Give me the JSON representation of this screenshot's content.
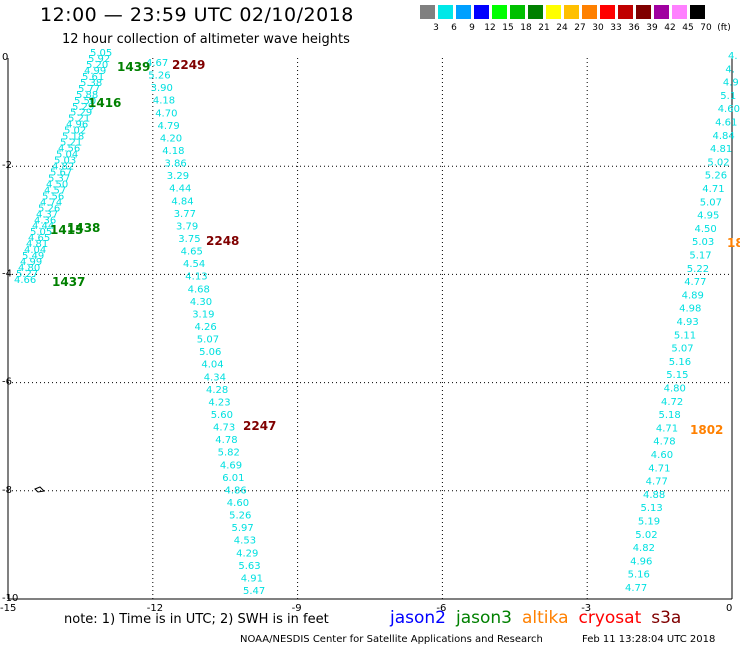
{
  "title": "12:00 — 23:59 UTC 02/10/2018",
  "subtitle": "12 hour collection of altimeter wave heights",
  "color_scale": {
    "labels": [
      "3",
      "6",
      "9",
      "12",
      "15",
      "18",
      "21",
      "24",
      "27",
      "30",
      "33",
      "36",
      "39",
      "42",
      "45",
      "70",
      "(ft)"
    ],
    "colors": [
      "#808080",
      "#00e8e8",
      "#00a0ff",
      "#0000ff",
      "#00ff00",
      "#00c000",
      "#008000",
      "#ffff00",
      "#ffc000",
      "#ff8000",
      "#ff0000",
      "#c00000",
      "#800000",
      "#a000a0",
      "#ff80ff",
      "#000000"
    ]
  },
  "axes": {
    "x_ticks": [
      "-15",
      "-12",
      "-9",
      "-6",
      "-3",
      "0"
    ],
    "y_ticks": [
      "0",
      "-2",
      "-4",
      "-6",
      "-8",
      "-10"
    ]
  },
  "tracks": [
    {
      "name": "track-a",
      "color": "#00e0e0",
      "values": [
        "5.05",
        "5.92",
        "5.20",
        "4.99",
        "5.61",
        "5.38",
        "5.77",
        "5.88",
        "5.50",
        "5.29",
        "5.29",
        "5.21",
        "4.96",
        "5.02",
        "5.18",
        "5.21",
        "4.56",
        "5.04",
        "5.03",
        "4.82",
        "5.67",
        "5.37",
        "4.50",
        "4.57",
        "5.56",
        "4.74",
        "5.26",
        "4.37",
        "4.36",
        "4.44",
        "5.05",
        "4.65",
        "4.81",
        "4.04",
        "5.49",
        "4.99",
        "4.80",
        "5.27",
        "4.66"
      ]
    },
    {
      "name": "track-b",
      "color": "#00e0e0",
      "values": [
        "4.67",
        "5.26",
        "3.90",
        "4.18",
        "4.70",
        "4.79",
        "4.20",
        "4.18",
        "3.86",
        "3.29",
        "4.44",
        "4.84",
        "3.77",
        "3.79",
        "3.75",
        "4.65",
        "4.54",
        "4.13",
        "4.68",
        "4.30",
        "3.19",
        "4.26",
        "5.07",
        "5.06",
        "4.04",
        "4.34",
        "4.28",
        "4.23",
        "5.60",
        "4.73",
        "4.78",
        "5.82",
        "4.69",
        "6.01",
        "4.86",
        "4.60",
        "5.26",
        "5.97",
        "4.53",
        "4.29",
        "5.63",
        "4.91",
        "5.47"
      ]
    },
    {
      "name": "track-c",
      "color": "#00e0e0",
      "values": [
        "4.",
        "4.",
        "4.9",
        "5.1",
        "4.60",
        "4.61",
        "4.84",
        "4.81",
        "5.02",
        "5.26",
        "4.71",
        "5.07",
        "4.95",
        "4.50",
        "5.03",
        "5.17",
        "5.22",
        "4.77",
        "4.89",
        "4.98",
        "4.93",
        "5.11",
        "5.07",
        "5.16",
        "5.15",
        "4.80",
        "4.72",
        "5.18",
        "4.71",
        "4.78",
        "4.60",
        "4.71",
        "4.77",
        "4.88",
        "5.13",
        "5.19",
        "5.02",
        "4.82",
        "4.96",
        "5.16",
        "4.77"
      ]
    }
  ],
  "time_labels": [
    {
      "text": "1439",
      "color": "#008000"
    },
    {
      "text": "2249",
      "color": "#800000"
    },
    {
      "text": "1416",
      "color": "#008000"
    },
    {
      "text": "1438",
      "color": "#008000"
    },
    {
      "text": "1415",
      "color": "#008000"
    },
    {
      "text": "2248",
      "color": "#800000"
    },
    {
      "text": "1437",
      "color": "#008000"
    },
    {
      "text": "2247",
      "color": "#800000"
    },
    {
      "text": "1802",
      "color": "#ff8000"
    },
    {
      "text": "18",
      "color": "#ff8000"
    }
  ],
  "note": "note:  1) Time is in UTC;  2) SWH is in feet",
  "satellites": [
    {
      "name": "jason2",
      "color": "#0000ff"
    },
    {
      "name": "jason3",
      "color": "#008000"
    },
    {
      "name": "altika",
      "color": "#ff8000"
    },
    {
      "name": "cryosat",
      "color": "#ff0000"
    },
    {
      "name": "s3a",
      "color": "#800000"
    }
  ],
  "credit": "NOAA/NESDIS Center for Satellite Applications and Research",
  "timestamp": "Feb 11 13:28:04 UTC 2018"
}
